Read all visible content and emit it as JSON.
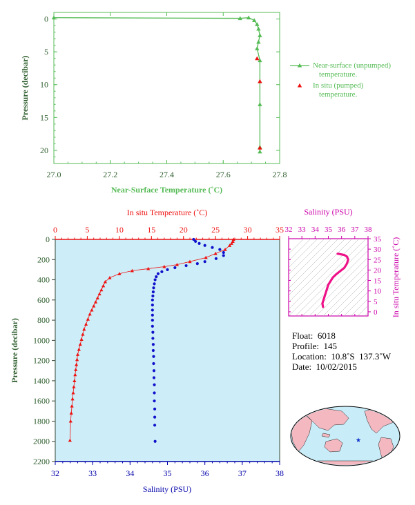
{
  "colors": {
    "green": "#55bb55",
    "dark_green": "#2e5e2e",
    "red": "#ee1111",
    "blue": "#1111cc",
    "magenta": "#cc00aa",
    "pink": "#ee1188",
    "panel_bg": "#cdeef8",
    "axis_blue": "#0000aa"
  },
  "chart_data": [
    {
      "type": "line",
      "xlabel": "Near-Surface Temperature (˚C)",
      "ylabel": "Pressure (decibar)",
      "xlim": [
        27.0,
        27.8
      ],
      "ylim": [
        22,
        -1
      ],
      "x_ticks": [
        "27.0",
        "27.2",
        "27.4",
        "27.6",
        "27.8"
      ],
      "y_ticks": [
        "0",
        "5",
        "10",
        "15",
        "20"
      ],
      "legend_position": "right",
      "series": [
        {
          "name": "Near-surface (unpumped) temperature.",
          "marker": "triangle-line",
          "x": [
            27.0,
            27.66,
            27.69,
            27.71,
            27.72,
            27.725,
            27.73,
            27.725,
            27.72,
            27.73,
            27.73,
            27.73,
            27.73,
            27.73
          ],
          "y": [
            -0.2,
            -0.1,
            -0.2,
            0.2,
            0.8,
            1.5,
            2.5,
            3.5,
            4.5,
            6.3,
            9.5,
            13.0,
            19.5,
            20.2
          ]
        },
        {
          "name": "In situ (pumped) temperature.",
          "marker": "triangle",
          "x": [
            27.72,
            27.73,
            27.73
          ],
          "y": [
            6.0,
            9.5,
            19.6
          ]
        }
      ]
    },
    {
      "type": "line",
      "xlabel_top": "In situ Temperature (˚C)",
      "xlabel_bottom": "Salinity (PSU)",
      "ylabel": "Pressure (decibar)",
      "xlim_top": [
        0,
        35
      ],
      "xlim_bottom": [
        32,
        38
      ],
      "ylim": [
        2200,
        0
      ],
      "x_ticks_top": [
        "0",
        "5",
        "10",
        "15",
        "20",
        "25",
        "30",
        "35"
      ],
      "x_ticks_bottom": [
        "32",
        "33",
        "34",
        "35",
        "36",
        "37",
        "38"
      ],
      "y_ticks": [
        "0",
        "200",
        "400",
        "600",
        "800",
        "1000",
        "1200",
        "1400",
        "1600",
        "1800",
        "2000",
        "2200"
      ],
      "series": [
        {
          "name": "temperature",
          "axis": "top",
          "marker": "triangle",
          "x": [
            27.8,
            27.7,
            27.5,
            27.2,
            26.5,
            25.0,
            23.5,
            21.0,
            19.0,
            17.0,
            14.5,
            12.0,
            10.0,
            8.5,
            7.8,
            7.5,
            7.2,
            6.9,
            6.6,
            6.3,
            6.0,
            5.7,
            5.4,
            5.1,
            4.8,
            4.5,
            4.3,
            4.1,
            3.9,
            3.7,
            3.5,
            3.4,
            3.3,
            3.2,
            3.1,
            3.0,
            2.9,
            2.8,
            2.7,
            2.6,
            2.5,
            2.4,
            2.3
          ],
          "y": [
            0,
            20,
            40,
            60,
            100,
            140,
            180,
            220,
            250,
            270,
            290,
            310,
            340,
            380,
            420,
            460,
            500,
            540,
            580,
            620,
            660,
            700,
            740,
            790,
            840,
            890,
            940,
            990,
            1040,
            1090,
            1140,
            1190,
            1240,
            1290,
            1340,
            1400,
            1460,
            1520,
            1580,
            1650,
            1720,
            1800,
            1990
          ]
        },
        {
          "name": "salinity",
          "axis": "bottom",
          "marker": "dot",
          "x": [
            35.7,
            35.75,
            35.85,
            36.0,
            36.2,
            36.4,
            36.5,
            36.5,
            36.3,
            36.0,
            35.8,
            35.5,
            35.2,
            35.0,
            34.85,
            34.75,
            34.7,
            34.67,
            34.65,
            34.63,
            34.62,
            34.61,
            34.6,
            34.6,
            34.6,
            34.6,
            34.6,
            34.6,
            34.61,
            34.61,
            34.62,
            34.62,
            34.63,
            34.63,
            34.64,
            34.64,
            34.65,
            34.65,
            34.65,
            34.66,
            34.66,
            34.66,
            34.67
          ],
          "y": [
            0,
            20,
            40,
            60,
            80,
            100,
            130,
            160,
            190,
            220,
            240,
            260,
            280,
            300,
            320,
            340,
            370,
            400,
            440,
            480,
            520,
            560,
            600,
            650,
            700,
            750,
            800,
            860,
            920,
            980,
            1040,
            1100,
            1160,
            1230,
            1300,
            1370,
            1440,
            1520,
            1600,
            1680,
            1760,
            1840,
            2000
          ]
        }
      ]
    },
    {
      "type": "line",
      "title": "Salinity (PSU)",
      "ylabel": "In situ Temperature (˚C)",
      "xlim": [
        32,
        38
      ],
      "ylim": [
        -2,
        35
      ],
      "x_ticks": [
        "32",
        "33",
        "34",
        "35",
        "36",
        "37",
        "38"
      ],
      "y_ticks": [
        "0",
        "5",
        "10",
        "15",
        "20",
        "25",
        "30",
        "35"
      ],
      "series": [
        {
          "name": "T-S",
          "x": [
            34.6,
            34.58,
            34.55,
            34.6,
            34.65,
            34.7,
            34.75,
            34.8,
            34.85,
            34.9,
            34.95,
            35.0,
            35.1,
            35.2,
            35.35,
            35.6,
            35.9,
            36.2,
            36.4,
            36.5,
            36.4,
            36.2,
            35.9,
            35.75,
            35.7
          ],
          "y": [
            2.3,
            3.0,
            4.0,
            5.0,
            6.0,
            7.0,
            8.0,
            9.0,
            10.0,
            11.0,
            12.0,
            13.0,
            14.0,
            15.0,
            16.5,
            18.0,
            19.5,
            21.0,
            23.0,
            25.0,
            26.5,
            27.2,
            27.6,
            27.8,
            27.8
          ]
        }
      ]
    }
  ],
  "info": {
    "float": "Float:  6018",
    "profile": "Profile:  145",
    "location": "Location:  10.8˚S  137.3˚W",
    "date": "Date:  10/02/2015"
  },
  "map": {
    "marker": "star"
  }
}
